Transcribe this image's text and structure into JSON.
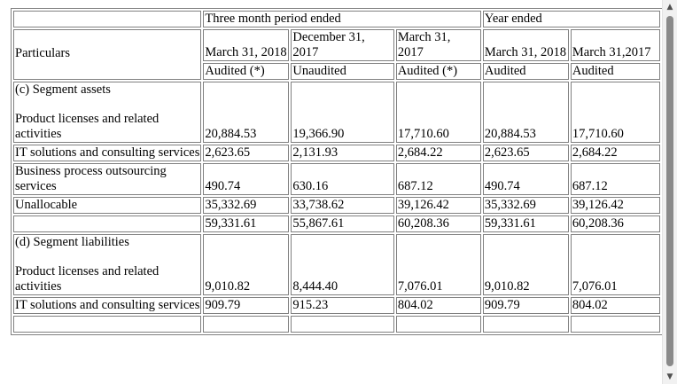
{
  "header": {
    "particulars": "Particulars",
    "three_month": "Three month period ended",
    "year_ended": "Year ended",
    "cols": [
      {
        "date": "March 31, 2018",
        "status": "Audited (*)"
      },
      {
        "date": "December 31, 2017",
        "status": "Unaudited"
      },
      {
        "date": "March 31, 2017",
        "status": "Audited (*)"
      },
      {
        "date": "March 31, 2018",
        "status": "Audited"
      },
      {
        "date": "March 31,2017",
        "status": "Audited"
      }
    ]
  },
  "segment_assets": {
    "title": "(c) Segment assets",
    "rows": [
      {
        "label": "Product licenses and related activities",
        "values": [
          "20,884.53",
          "19,366.90",
          "17,710.60",
          "20,884.53",
          "17,710.60"
        ]
      },
      {
        "label": "IT solutions and consulting services",
        "values": [
          "2,623.65",
          "2,131.93",
          "2,684.22",
          "2,623.65",
          "2,684.22"
        ]
      },
      {
        "label": "Business process outsourcing services",
        "values": [
          "490.74",
          "630.16",
          "687.12",
          "490.74",
          "687.12"
        ]
      },
      {
        "label": "Unallocable",
        "values": [
          "35,332.69",
          "33,738.62",
          "39,126.42",
          "35,332.69",
          "39,126.42"
        ]
      }
    ],
    "total": [
      "59,331.61",
      "55,867.61",
      "60,208.36",
      "59,331.61",
      "60,208.36"
    ]
  },
  "segment_liabilities": {
    "title": "(d) Segment liabilities",
    "rows": [
      {
        "label": "Product licenses and related activities",
        "values": [
          "9,010.82",
          "8,444.40",
          "7,076.01",
          "9,010.82",
          "7,076.01"
        ]
      },
      {
        "label": "IT solutions and consulting services",
        "values": [
          "909.79",
          "915.23",
          "804.02",
          "909.79",
          "804.02"
        ]
      }
    ]
  },
  "scrollbar": {
    "up_icon": "arrow-up-icon",
    "down_icon": "arrow-down-icon"
  }
}
